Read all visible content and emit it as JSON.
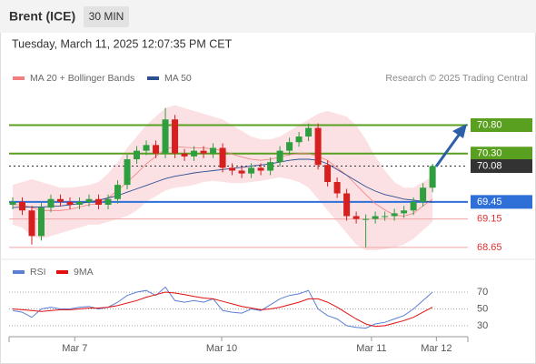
{
  "header": {
    "title": "Brent (ICE)",
    "interval": "30 MIN",
    "timestamp": "Tuesday, March 11, 2025 12:07:35 PM CET"
  },
  "chart_data": [
    {
      "type": "candlestick",
      "source": "Research © 2025 Trading Central",
      "xlim": [
        -0.38,
        47.7
      ],
      "ylim": [
        68.44,
        71.4
      ],
      "up_color": "#2e9e3e",
      "down_color": "#d62020",
      "band_color": "#fadadd",
      "candles": {
        "open": [
          69.4,
          69.45,
          69.3,
          68.85,
          69.35,
          69.5,
          69.45,
          69.4,
          69.45,
          69.5,
          69.4,
          69.5,
          69.75,
          70.2,
          70.35,
          70.45,
          70.3,
          70.9,
          70.3,
          70.25,
          70.35,
          70.3,
          70.4,
          70.05,
          70.0,
          69.95,
          70.05,
          70.0,
          70.15,
          70.35,
          70.5,
          70.6,
          70.75,
          70.1,
          69.8,
          69.6,
          69.2,
          69.15,
          69.15,
          69.2,
          69.2,
          69.25,
          69.3,
          69.45,
          69.7
        ],
        "high": [
          69.53,
          69.53,
          69.38,
          69.43,
          69.58,
          69.58,
          69.53,
          69.53,
          69.58,
          69.58,
          69.58,
          69.83,
          70.28,
          70.43,
          70.53,
          70.53,
          71.1,
          70.98,
          70.38,
          70.43,
          70.43,
          70.48,
          70.48,
          70.13,
          70.08,
          70.13,
          70.13,
          70.23,
          70.43,
          70.58,
          70.68,
          70.83,
          70.83,
          70.18,
          69.88,
          69.68,
          69.28,
          69.23,
          69.28,
          69.28,
          69.33,
          69.38,
          69.53,
          69.78,
          70.12
        ],
        "low": [
          69.32,
          69.22,
          68.7,
          68.77,
          69.27,
          69.37,
          69.32,
          69.32,
          69.37,
          69.32,
          69.32,
          69.42,
          69.67,
          70.12,
          70.27,
          70.22,
          70.22,
          70.22,
          70.17,
          70.17,
          70.22,
          70.22,
          69.97,
          69.92,
          69.87,
          69.87,
          69.92,
          69.92,
          70.07,
          70.27,
          70.42,
          70.52,
          70.02,
          69.72,
          69.52,
          69.12,
          69.07,
          68.65,
          69.07,
          69.12,
          69.12,
          69.17,
          69.22,
          69.37,
          69.62
        ],
        "close": [
          69.45,
          69.3,
          68.85,
          69.35,
          69.5,
          69.45,
          69.4,
          69.45,
          69.5,
          69.4,
          69.5,
          69.75,
          70.2,
          70.35,
          70.45,
          70.3,
          70.9,
          70.3,
          70.25,
          70.35,
          70.3,
          70.4,
          70.05,
          70.0,
          69.95,
          70.05,
          70.0,
          70.15,
          70.35,
          70.5,
          70.6,
          70.75,
          70.1,
          69.8,
          69.6,
          69.2,
          69.15,
          69.15,
          69.2,
          69.2,
          69.25,
          69.3,
          69.45,
          69.7,
          70.08
        ]
      },
      "series": [
        {
          "name": "MA 20 + Bollinger Bands",
          "color": "#f08080",
          "values": [
            69.4,
            69.4,
            69.35,
            69.3,
            69.3,
            69.3,
            69.32,
            69.36,
            69.4,
            69.42,
            69.52,
            69.65,
            69.8,
            69.95,
            70.12,
            70.25,
            70.38,
            70.42,
            70.41,
            70.4,
            70.4,
            70.38,
            70.35,
            70.29,
            70.24,
            70.2,
            70.18,
            70.2,
            70.24,
            70.28,
            70.3,
            70.3,
            70.25,
            70.18,
            70.05,
            69.92,
            69.75,
            69.58,
            69.42,
            69.31,
            69.22,
            69.2,
            69.25,
            69.38,
            69.5
          ],
          "upper": [
            69.75,
            69.8,
            69.85,
            69.8,
            69.75,
            69.7,
            69.7,
            69.72,
            69.75,
            69.8,
            69.95,
            70.15,
            70.4,
            70.6,
            70.8,
            70.95,
            71.1,
            71.15,
            71.1,
            71.05,
            71.0,
            70.95,
            70.9,
            70.8,
            70.7,
            70.6,
            70.55,
            70.55,
            70.6,
            70.7,
            70.8,
            70.9,
            71.0,
            71.05,
            71.0,
            70.95,
            70.8,
            70.55,
            70.25,
            70.0,
            69.8,
            69.7,
            69.7,
            69.8,
            69.9
          ],
          "lower": [
            69.05,
            69.0,
            68.85,
            68.8,
            68.85,
            68.9,
            68.95,
            69.0,
            69.05,
            69.05,
            69.1,
            69.15,
            69.2,
            69.3,
            69.45,
            69.55,
            69.65,
            69.7,
            69.72,
            69.75,
            69.8,
            69.82,
            69.8,
            69.78,
            69.78,
            69.8,
            69.82,
            69.85,
            69.88,
            69.85,
            69.8,
            69.7,
            69.5,
            69.3,
            69.1,
            68.9,
            68.7,
            68.6,
            68.6,
            68.62,
            68.65,
            68.7,
            68.8,
            68.95,
            69.1
          ]
        },
        {
          "name": "MA 50",
          "color": "#2c4f8f",
          "values": [
            69.35,
            69.36,
            69.36,
            69.36,
            69.37,
            69.38,
            69.4,
            69.42,
            69.45,
            69.48,
            69.52,
            69.56,
            69.62,
            69.68,
            69.74,
            69.8,
            69.86,
            69.9,
            69.93,
            69.96,
            69.98,
            70.0,
            70.02,
            70.04,
            70.06,
            70.08,
            70.1,
            70.12,
            70.15,
            70.18,
            70.2,
            70.2,
            70.18,
            70.12,
            70.02,
            69.92,
            69.82,
            69.72,
            69.64,
            69.58,
            69.54,
            69.5,
            69.48,
            69.46,
            69.45
          ]
        }
      ],
      "levels": [
        {
          "value": 70.8,
          "label": "70.80",
          "color": "#5aa020",
          "boxed": true
        },
        {
          "value": 70.3,
          "label": "70.30",
          "color": "#5aa020",
          "boxed": true
        },
        {
          "value": 70.08,
          "label": "70.08",
          "color": "#333333",
          "boxed": true
        },
        {
          "value": 69.45,
          "label": "69.45",
          "color": "#2e6fd8",
          "boxed": true
        },
        {
          "value": 69.15,
          "label": "69.15",
          "color": "#e03030",
          "boxed": false
        },
        {
          "value": 68.65,
          "label": "68.65",
          "color": "#e03030",
          "boxed": false
        }
      ]
    },
    {
      "type": "line",
      "xlim": [
        -0.38,
        47.7
      ],
      "ylim": [
        19,
        82
      ],
      "yticks": [
        30,
        50,
        70
      ],
      "xticks": [
        {
          "value": 6.5,
          "label": "Mar 7"
        },
        {
          "value": 21.9,
          "label": "Mar 10"
        },
        {
          "value": 37.6,
          "label": "Mar 11"
        },
        {
          "value": 44.4,
          "label": "Mar 12"
        }
      ],
      "series": [
        {
          "name": "RSI",
          "color": "#5b7fd6",
          "values": [
            48,
            46,
            40,
            50,
            52,
            50,
            50,
            52,
            53,
            50,
            52,
            58,
            66,
            70,
            72,
            66,
            76,
            60,
            58,
            60,
            58,
            62,
            48,
            46,
            45,
            50,
            48,
            55,
            62,
            66,
            68,
            72,
            50,
            42,
            38,
            30,
            28,
            27,
            32,
            34,
            38,
            42,
            50,
            60,
            70
          ]
        },
        {
          "name": "9MA",
          "color": "#e01010",
          "values": [
            50,
            49,
            48,
            47,
            48,
            49,
            49,
            50,
            51,
            51,
            52,
            54,
            57,
            60,
            64,
            67,
            70,
            69,
            67,
            65,
            63,
            62,
            59,
            56,
            53,
            51,
            49,
            50,
            52,
            55,
            58,
            62,
            62,
            58,
            52,
            45,
            38,
            32,
            29,
            30,
            33,
            36,
            40,
            46,
            52
          ]
        }
      ]
    }
  ]
}
